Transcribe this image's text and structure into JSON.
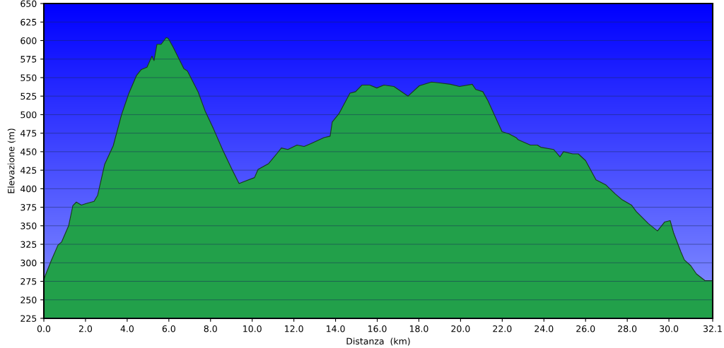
{
  "chart_data": {
    "type": "area",
    "xlabel": "Distanza  (km)",
    "ylabel": "Elevazione (m)",
    "xlim": [
      0,
      32.1
    ],
    "xticks": [
      {
        "value": 0,
        "label": "0.0"
      },
      {
        "value": 2,
        "label": "2.0"
      },
      {
        "value": 4,
        "label": "4.0"
      },
      {
        "value": 6,
        "label": "6.0"
      },
      {
        "value": 8,
        "label": "8.0"
      },
      {
        "value": 10,
        "label": "10.0"
      },
      {
        "value": 12,
        "label": "12.0"
      },
      {
        "value": 14,
        "label": "14.0"
      },
      {
        "value": 16,
        "label": "16.0"
      },
      {
        "value": 18,
        "label": "18.0"
      },
      {
        "value": 20,
        "label": "20.0"
      },
      {
        "value": 22,
        "label": "22.0"
      },
      {
        "value": 24,
        "label": "24.0"
      },
      {
        "value": 26,
        "label": "26.0"
      },
      {
        "value": 28,
        "label": "28.0"
      },
      {
        "value": 30,
        "label": "30.0"
      },
      {
        "value": 32.1,
        "label": "32.1"
      }
    ],
    "ylim": [
      225,
      650
    ],
    "yticks": [
      225,
      250,
      275,
      300,
      325,
      350,
      375,
      400,
      425,
      450,
      475,
      500,
      525,
      550,
      575,
      600,
      625,
      650
    ],
    "grid": "y",
    "series": [
      {
        "color": "#22a04a",
        "x": [
          0,
          0.1,
          0.34,
          0.68,
          0.85,
          1.19,
          1.39,
          1.56,
          1.8,
          2.04,
          2.41,
          2.58,
          2.92,
          3.33,
          3.73,
          4.07,
          4.45,
          4.68,
          4.95,
          5.19,
          5.29,
          5.43,
          5.63,
          5.87,
          5.97,
          6.21,
          6.72,
          6.89,
          7.4,
          7.74,
          8.14,
          8.59,
          9.03,
          9.37,
          9.54,
          10.11,
          10.28,
          10.79,
          11.2,
          11.4,
          11.71,
          12.15,
          12.49,
          12.83,
          13.44,
          13.74,
          13.84,
          14.18,
          14.69,
          14.96,
          15.27,
          15.64,
          15.98,
          16.32,
          16.8,
          17.48,
          18.02,
          18.6,
          18.94,
          19.51,
          19.95,
          20.56,
          20.73,
          21.07,
          21.31,
          21.99,
          22.33,
          22.67,
          22.77,
          23.35,
          23.69,
          23.85,
          24.47,
          24.77,
          24.94,
          25.38,
          25.65,
          26.0,
          26.5,
          26.98,
          27.42,
          27.76,
          28.2,
          28.44,
          29.01,
          29.45,
          29.79,
          30.06,
          30.23,
          30.57,
          30.74,
          31.05,
          31.32,
          31.73,
          32.1
        ],
        "values": [
          277,
          285,
          302,
          324,
          328,
          350,
          377,
          382,
          378,
          380,
          383,
          391,
          433,
          458,
          500,
          528,
          553,
          561,
          564,
          579,
          573,
          595,
          595,
          604,
          603,
          591,
          562,
          559,
          531,
          505,
          481,
          452,
          426,
          407,
          409,
          415,
          426,
          434,
          448,
          455,
          453,
          459,
          457,
          461,
          469,
          471,
          490,
          502,
          529,
          531,
          540,
          540,
          536,
          540,
          538,
          525,
          539,
          544,
          543,
          541,
          538,
          541,
          534,
          531,
          519,
          477,
          474,
          469,
          466,
          459,
          459,
          456,
          453,
          443,
          450,
          447,
          447,
          438,
          412,
          405,
          393,
          385,
          378,
          369,
          353,
          343,
          355,
          357,
          340,
          315,
          304,
          296,
          285,
          276,
          276
        ]
      }
    ]
  }
}
